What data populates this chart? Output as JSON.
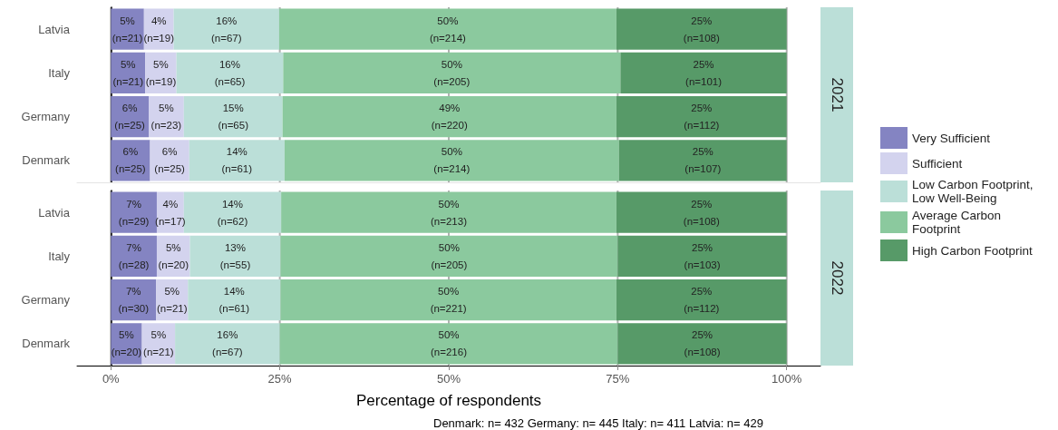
{
  "chart_data": [
    {
      "type": "bar",
      "title": "2021",
      "orientation": "horizontal",
      "stacked": true,
      "categories": [
        "Latvia",
        "Italy",
        "Germany",
        "Denmark"
      ],
      "xlim": [
        -5,
        105
      ],
      "xticks": [
        0,
        25,
        50,
        75,
        100
      ],
      "grid": "x",
      "tick_labels": "y",
      "legend": "right",
      "series": [
        {
          "name": "Very Sufficient",
          "color": "#8484c2",
          "values": [
            4.9,
            5.1,
            5.6,
            5.8
          ],
          "value_labels": [
            "5%\n(n=21)",
            "5%\n(n=21)",
            "6%\n(n=25)",
            "6%\n(n=25)"
          ]
        },
        {
          "name": "Sufficient",
          "color": "#d3d3ee",
          "values": [
            4.4,
            4.6,
            5.2,
            5.8
          ],
          "value_labels": [
            "4%\n(n=19)",
            "5%\n(n=19)",
            "5%\n(n=23)",
            "6%\n(n=25)"
          ]
        },
        {
          "name": "Low Carbon Footprint, Low Well-Being",
          "color": "#bbdfd8",
          "values": [
            15.6,
            15.8,
            14.6,
            14.1
          ],
          "value_labels": [
            "16%\n(n=67)",
            "16%\n(n=65)",
            "15%\n(n=65)",
            "14%\n(n=61)"
          ]
        },
        {
          "name": "Average Carbon Footprint",
          "color": "#8bc99e",
          "values": [
            49.9,
            49.9,
            49.4,
            49.5
          ],
          "value_labels": [
            "50%\n(n=214)",
            "50%\n(n=205)",
            "49%\n(n=220)",
            "50%\n(n=214)"
          ]
        },
        {
          "name": "High Carbon Footprint",
          "color": "#579a68",
          "values": [
            25.2,
            24.6,
            25.2,
            24.8
          ],
          "value_labels": [
            "25%\n(n=108)",
            "25%\n(n=101)",
            "25%\n(n=112)",
            "25%\n(n=107)"
          ]
        }
      ]
    },
    {
      "type": "bar",
      "title": "2022",
      "orientation": "horizontal",
      "stacked": true,
      "categories": [
        "Latvia",
        "Italy",
        "Germany",
        "Denmark"
      ],
      "xlim": [
        -5,
        105
      ],
      "xticks": [
        {
          "value": 0,
          "label": "0%"
        },
        {
          "value": 25,
          "label": "25%"
        },
        {
          "value": 50,
          "label": "50%"
        },
        {
          "value": 75,
          "label": "75%"
        },
        {
          "value": 100,
          "label": "100%"
        }
      ],
      "grid": "x",
      "xlabel": "Percentage of respondents",
      "annotations": [
        "Denmark: n= 432 Germany: n= 445 Italy: n= 411 Latvia: n= 429"
      ],
      "series": [
        {
          "name": "Very Sufficient",
          "color": "#8484c2",
          "values": [
            6.8,
            6.8,
            6.7,
            4.6
          ],
          "value_labels": [
            "7%\n(n=29)",
            "7%\n(n=28)",
            "7%\n(n=30)",
            "5%\n(n=20)"
          ]
        },
        {
          "name": "Sufficient",
          "color": "#d3d3ee",
          "values": [
            4.0,
            4.9,
            4.7,
            4.9
          ],
          "value_labels": [
            "4%\n(n=17)",
            "5%\n(n=20)",
            "5%\n(n=21)",
            "5%\n(n=21)"
          ]
        },
        {
          "name": "Low Carbon Footprint, Low Well-Being",
          "color": "#bbdfd8",
          "values": [
            14.4,
            13.4,
            13.7,
            15.5
          ],
          "value_labels": [
            "14%\n(n=62)",
            "13%\n(n=55)",
            "14%\n(n=61)",
            "16%\n(n=67)"
          ]
        },
        {
          "name": "Average Carbon Footprint",
          "color": "#8bc99e",
          "values": [
            49.6,
            49.9,
            49.7,
            50.0
          ],
          "value_labels": [
            "50%\n(n=213)",
            "50%\n(n=205)",
            "50%\n(n=221)",
            "50%\n(n=216)"
          ]
        },
        {
          "name": "High Carbon Footprint",
          "color": "#579a68",
          "values": [
            25.2,
            25.0,
            25.2,
            25.0
          ],
          "value_labels": [
            "25%\n(n=108)",
            "25%\n(n=103)",
            "25%\n(n=112)",
            "25%\n(n=108)"
          ]
        }
      ]
    }
  ]
}
